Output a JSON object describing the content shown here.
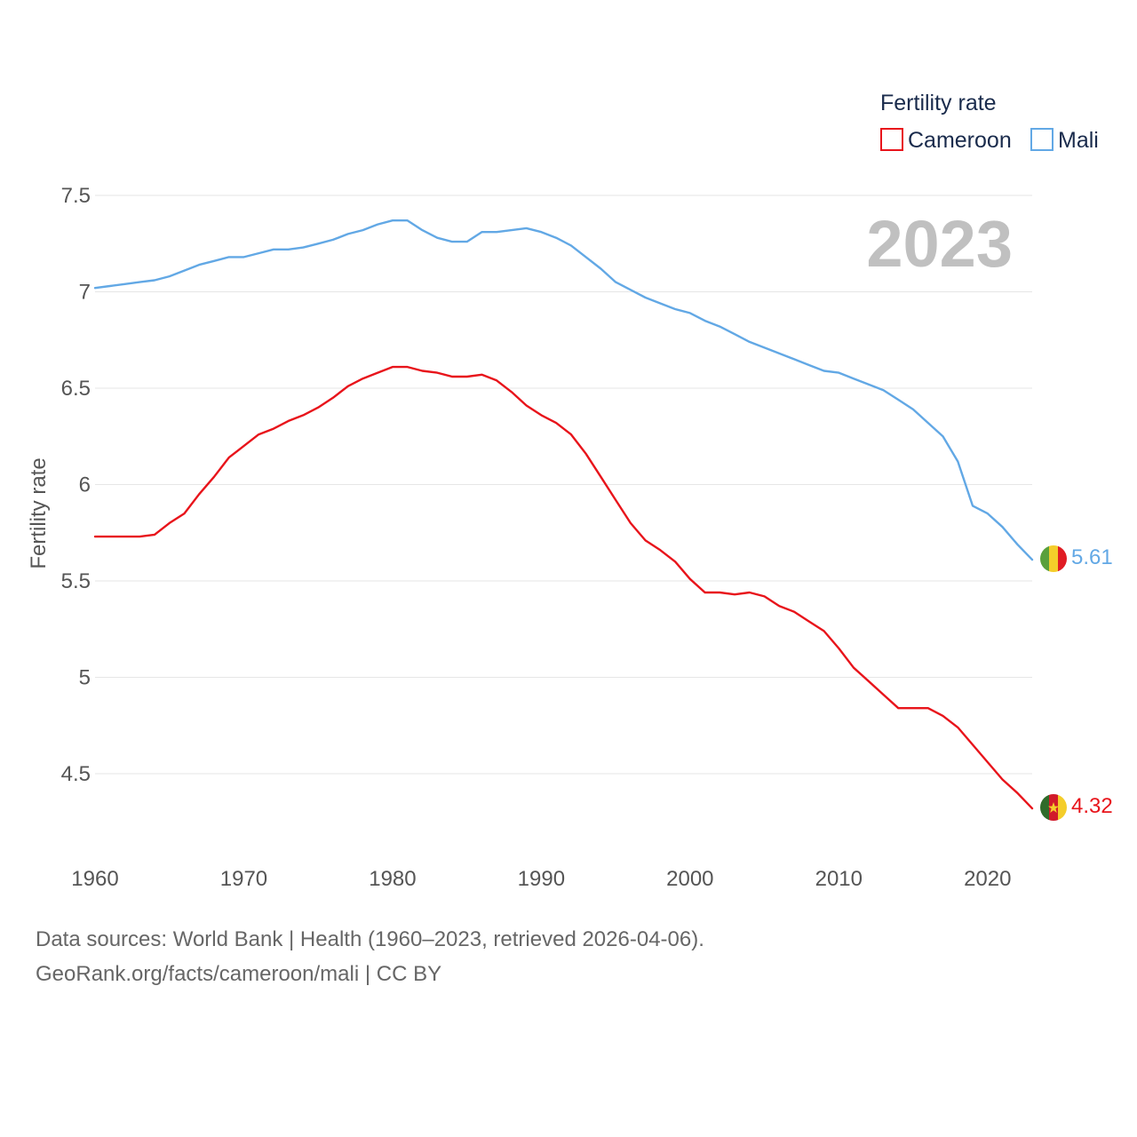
{
  "chart_data": {
    "type": "line",
    "ylabel": "Fertility rate",
    "legend_title": "Fertility rate",
    "year_label": "2023",
    "ylim": [
      4.2,
      7.55
    ],
    "xlim": [
      1960,
      2023
    ],
    "yticks": [
      4.5,
      5,
      5.5,
      6,
      6.5,
      7,
      7.5
    ],
    "ytick_labels": [
      "4.5",
      "5",
      "5.5",
      "6",
      "6.5",
      "7",
      "7.5"
    ],
    "xticks": [
      1960,
      1970,
      1980,
      1990,
      2000,
      2010,
      2020
    ],
    "xtick_labels": [
      "1960",
      "1970",
      "1980",
      "1990",
      "2000",
      "2010",
      "2020"
    ],
    "x": [
      1960,
      1961,
      1962,
      1963,
      1964,
      1965,
      1966,
      1967,
      1968,
      1969,
      1970,
      1971,
      1972,
      1973,
      1974,
      1975,
      1976,
      1977,
      1978,
      1979,
      1980,
      1981,
      1982,
      1983,
      1984,
      1985,
      1986,
      1987,
      1988,
      1989,
      1990,
      1991,
      1992,
      1993,
      1994,
      1995,
      1996,
      1997,
      1998,
      1999,
      2000,
      2001,
      2002,
      2003,
      2004,
      2005,
      2006,
      2007,
      2008,
      2009,
      2010,
      2011,
      2012,
      2013,
      2014,
      2015,
      2016,
      2017,
      2018,
      2019,
      2020,
      2021,
      2022,
      2023
    ],
    "series": [
      {
        "name": "Cameroon",
        "color": "#e8141b",
        "end_label": "4.32",
        "values": [
          5.73,
          5.73,
          5.73,
          5.73,
          5.74,
          5.8,
          5.85,
          5.95,
          6.04,
          6.14,
          6.2,
          6.26,
          6.29,
          6.33,
          6.36,
          6.4,
          6.45,
          6.51,
          6.55,
          6.58,
          6.61,
          6.61,
          6.59,
          6.58,
          6.56,
          6.56,
          6.57,
          6.54,
          6.48,
          6.41,
          6.36,
          6.32,
          6.26,
          6.16,
          6.04,
          5.92,
          5.8,
          5.71,
          5.66,
          5.6,
          5.51,
          5.44,
          5.44,
          5.43,
          5.44,
          5.42,
          5.37,
          5.34,
          5.29,
          5.24,
          5.15,
          5.05,
          4.98,
          4.91,
          4.84,
          4.84,
          4.84,
          4.8,
          4.74,
          4.65,
          4.56,
          4.47,
          4.4,
          4.32
        ]
      },
      {
        "name": "Mali",
        "color": "#62a8e5",
        "end_label": "5.61",
        "values": [
          7.02,
          7.03,
          7.04,
          7.05,
          7.06,
          7.08,
          7.11,
          7.14,
          7.16,
          7.18,
          7.18,
          7.2,
          7.22,
          7.22,
          7.23,
          7.25,
          7.27,
          7.3,
          7.32,
          7.35,
          7.37,
          7.37,
          7.32,
          7.28,
          7.26,
          7.26,
          7.31,
          7.31,
          7.32,
          7.33,
          7.31,
          7.28,
          7.24,
          7.18,
          7.12,
          7.05,
          7.01,
          6.97,
          6.94,
          6.91,
          6.89,
          6.85,
          6.82,
          6.78,
          6.74,
          6.71,
          6.68,
          6.65,
          6.62,
          6.59,
          6.58,
          6.55,
          6.52,
          6.49,
          6.44,
          6.39,
          6.32,
          6.25,
          6.12,
          5.89,
          5.85,
          5.78,
          5.69,
          5.61
        ]
      }
    ]
  },
  "sources": {
    "line1": "Data sources: World Bank | Health (1960–2023, retrieved 2026-04-06).",
    "line2": "GeoRank.org/facts/cameroon/mali | CC BY"
  }
}
